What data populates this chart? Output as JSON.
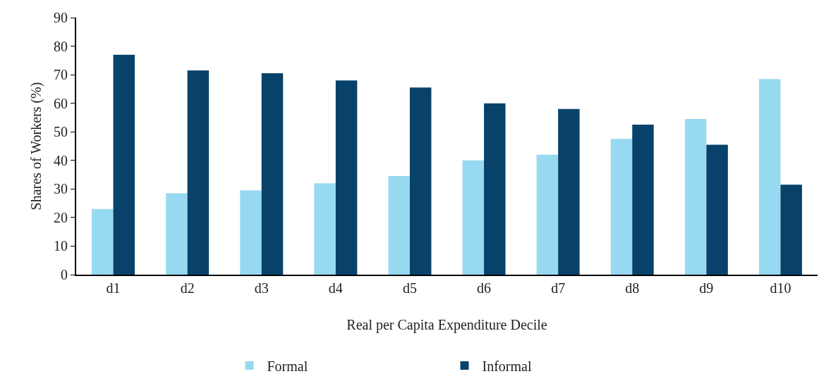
{
  "chart_data": {
    "type": "bar",
    "xlabel": "Real per Capita Expenditure Decile",
    "ylabel": "Shares of Workers (%)",
    "categories": [
      "d1",
      "d2",
      "d3",
      "d4",
      "d5",
      "d6",
      "d7",
      "d8",
      "d9",
      "d10"
    ],
    "series": [
      {
        "name": "Formal",
        "color": "#97d9f0",
        "values": [
          23,
          28.5,
          29.5,
          32,
          34.5,
          40,
          42,
          47.5,
          54.5,
          68.5
        ]
      },
      {
        "name": "Informal",
        "color": "#08426a",
        "values": [
          77,
          71.5,
          70.5,
          68,
          65.5,
          60,
          58,
          52.5,
          45.5,
          31.5
        ]
      }
    ],
    "ylim": [
      0,
      90
    ],
    "yticks": [
      0,
      10,
      20,
      30,
      40,
      50,
      60,
      70,
      80,
      90
    ],
    "grid": false,
    "legend": "bottom"
  }
}
